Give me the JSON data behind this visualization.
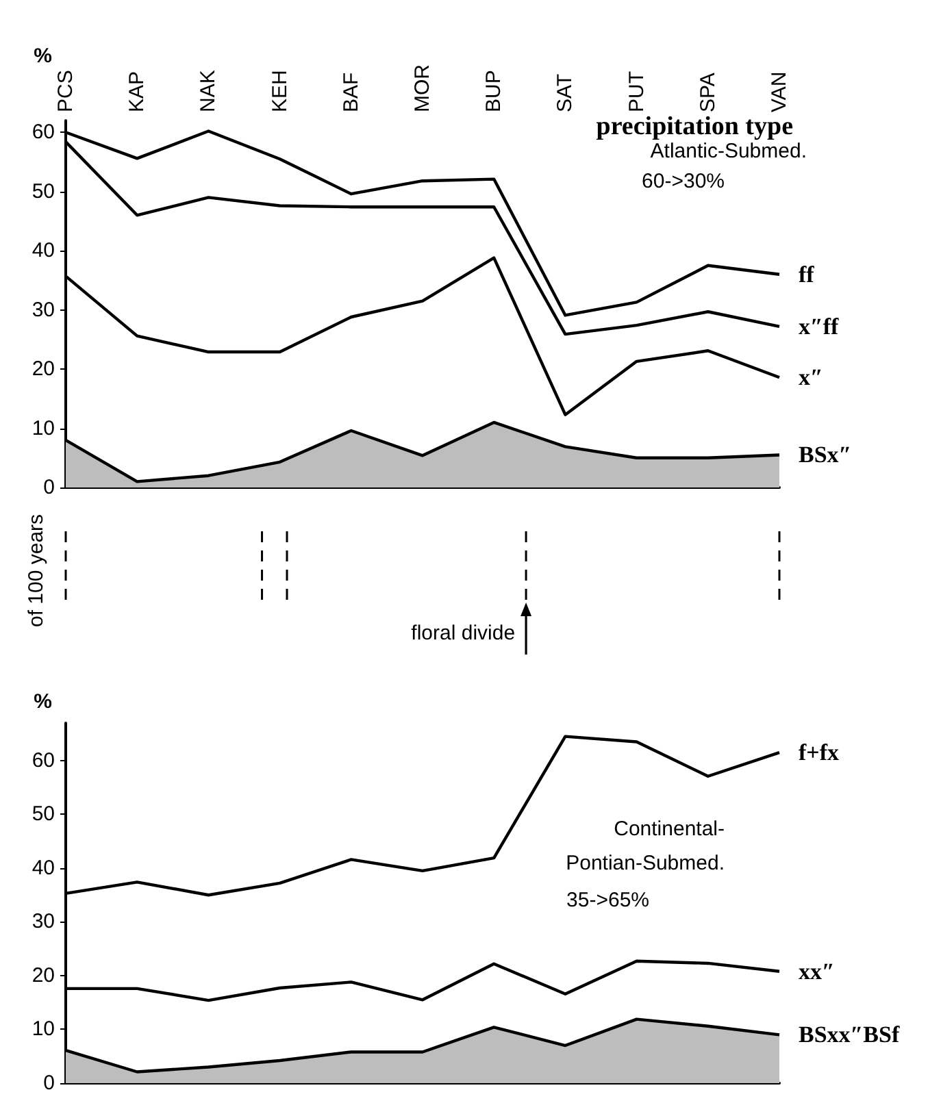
{
  "chart_data": [
    {
      "type": "line",
      "title": "precipitation type",
      "ylabel": "%",
      "categories": [
        "PCS",
        "KAP",
        "NAK",
        "KEH",
        "BAF",
        "MOR",
        "BUP",
        "SAT",
        "PUT",
        "SPA",
        "VAN"
      ],
      "ylim": [
        0,
        62
      ],
      "yticks": [
        0,
        10,
        20,
        30,
        40,
        50,
        60
      ],
      "annotations": [
        "Atlantic-Submed.",
        "60->30%",
        "of 100 years"
      ],
      "series": [
        {
          "name": "ff",
          "color": "#000000",
          "values": [
            60,
            55.6,
            60.2,
            55.5,
            49.6,
            51.8,
            52.1,
            29.1,
            31.3,
            37.5,
            36
          ]
        },
        {
          "name": "x″ff",
          "color": "#000000",
          "values": [
            58.4,
            46,
            49,
            47.6,
            47.4,
            47.4,
            47.4,
            25.9,
            27.4,
            29.7,
            27.2
          ]
        },
        {
          "name": "x″",
          "color": "#000000",
          "values": [
            35.7,
            25.6,
            22.9,
            22.9,
            28.8,
            31.5,
            38.8,
            12.3,
            21.3,
            23.1,
            18.6
          ]
        },
        {
          "name": "BSx″",
          "type": "area",
          "color": "#000000",
          "values": [
            8,
            1,
            2,
            4.3,
            9.6,
            5.4,
            11,
            6.9,
            5,
            5,
            5.5
          ]
        }
      ],
      "marker": "none"
    },
    {
      "type": "line",
      "ylabel": "%",
      "categories": [
        null,
        null,
        null,
        null,
        null,
        null,
        null,
        null,
        null,
        null,
        null
      ],
      "ylim": [
        0,
        67
      ],
      "yticks": [
        0,
        10,
        20,
        30,
        40,
        50,
        60
      ],
      "annotations": [
        "floral divide",
        "Continental-",
        "Pontian-Submed.",
        "35->65%"
      ],
      "series": [
        {
          "name": "f+fx",
          "color": "#000000",
          "values": [
            35.3,
            37.4,
            35,
            37.2,
            41.6,
            39.5,
            41.9,
            64.5,
            63.5,
            57.1,
            61.5
          ]
        },
        {
          "name": "xx″",
          "color": "#000000",
          "values": [
            17.6,
            17.6,
            15.4,
            17.7,
            18.8,
            15.5,
            22.2,
            16.6,
            22.7,
            22.3,
            20.8
          ]
        },
        {
          "name": "BSxx″BSf",
          "type": "area",
          "color": "#000000",
          "values": [
            6.1,
            2.1,
            3,
            4.2,
            5.8,
            5.8,
            10.4,
            7,
            11.9,
            10.6,
            9
          ]
        }
      ],
      "tick_labels": "y",
      "marker": "none"
    }
  ]
}
